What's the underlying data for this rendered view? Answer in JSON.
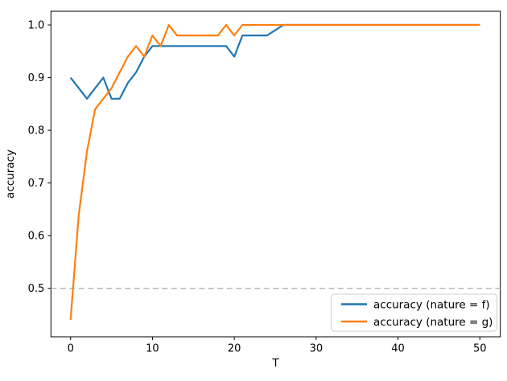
{
  "figure": {
    "background": "#ffffff",
    "plot_border_color": "#000000"
  },
  "chart_data": {
    "type": "line",
    "title": "",
    "xlabel": "T",
    "ylabel": "accuracy",
    "x_ticks": [
      "0",
      "10",
      "20",
      "30",
      "40",
      "50"
    ],
    "y_ticks": [
      "0.5",
      "0.6",
      "0.7",
      "0.8",
      "0.9",
      "1.0"
    ],
    "xlim": [
      -2.4,
      52.5
    ],
    "ylim": [
      0.408,
      1.026
    ],
    "grid": false,
    "legend_position": "lower right",
    "baseline": {
      "y": 0.5,
      "style": "dashed",
      "color": "#b3b3b3"
    },
    "series": [
      {
        "name": "accuracy (nature = f)",
        "color": "#1f77b4",
        "x": [
          0,
          1,
          2,
          3,
          4,
          5,
          6,
          7,
          8,
          9,
          10,
          11,
          12,
          13,
          14,
          15,
          16,
          17,
          18,
          19,
          20,
          21,
          22,
          23,
          24,
          25,
          26,
          50
        ],
        "values": [
          0.9,
          0.88,
          0.86,
          0.88,
          0.9,
          0.86,
          0.86,
          0.89,
          0.91,
          0.94,
          0.96,
          0.96,
          0.96,
          0.96,
          0.96,
          0.96,
          0.96,
          0.96,
          0.96,
          0.96,
          0.94,
          0.98,
          0.98,
          0.98,
          0.98,
          0.99,
          1.0,
          1.0
        ]
      },
      {
        "name": "accuracy (nature = g)",
        "color": "#ff7f0e",
        "x": [
          0,
          1,
          2,
          3,
          4,
          5,
          6,
          7,
          8,
          9,
          10,
          11,
          12,
          13,
          14,
          15,
          16,
          17,
          18,
          19,
          20,
          21,
          22,
          50
        ],
        "values": [
          0.44,
          0.64,
          0.76,
          0.84,
          0.86,
          0.88,
          0.91,
          0.94,
          0.96,
          0.94,
          0.98,
          0.96,
          1.0,
          0.98,
          0.98,
          0.98,
          0.98,
          0.98,
          0.98,
          1.0,
          0.98,
          1.0,
          1.0,
          1.0
        ]
      }
    ]
  }
}
